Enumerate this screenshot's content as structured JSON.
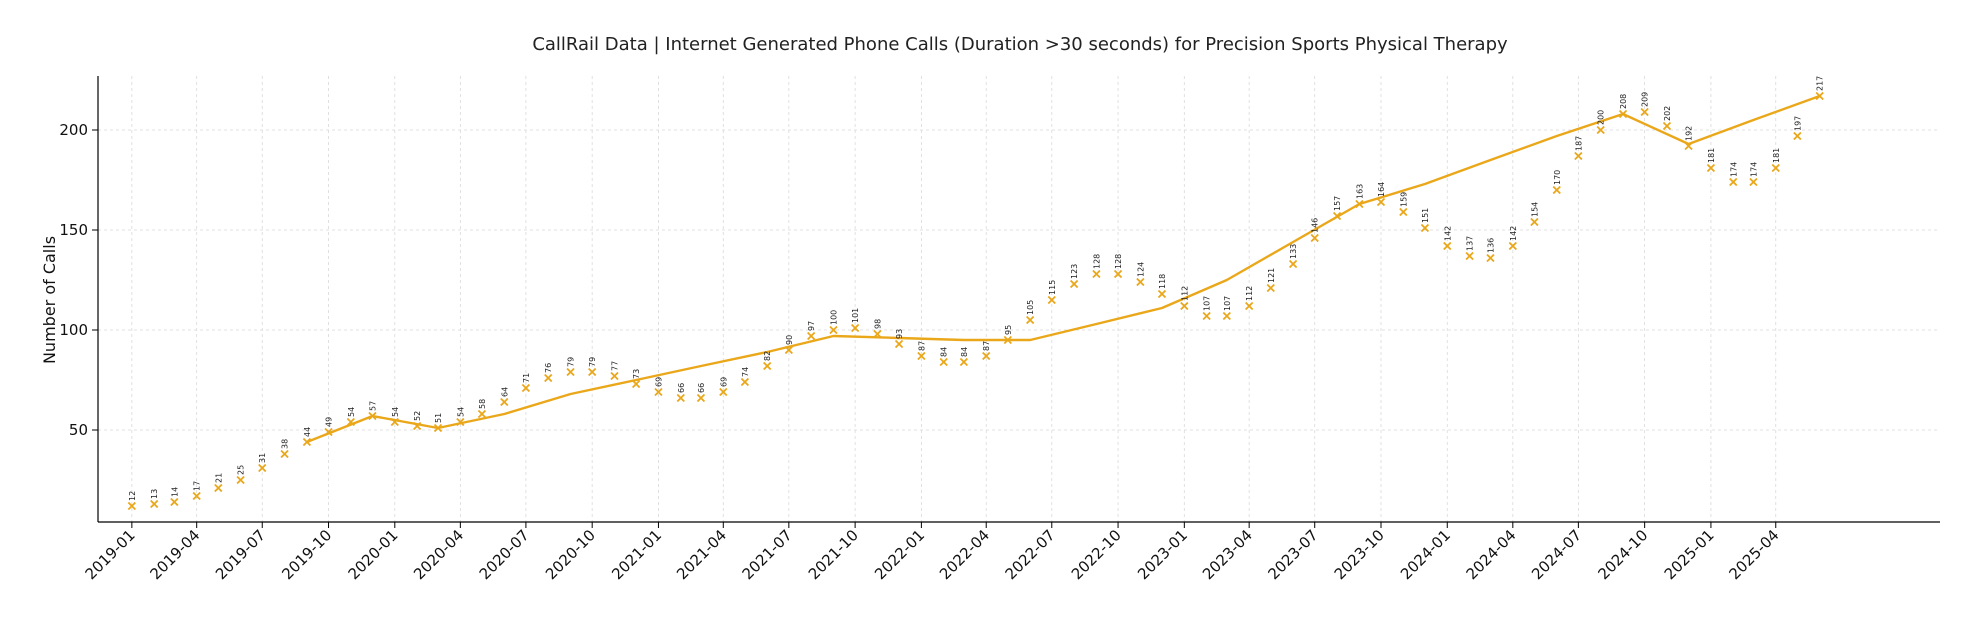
{
  "chart_data": {
    "type": "line",
    "title": "CallRail Data | Internet Generated Phone Calls (Duration >30 seconds) for Precision Sports Physical Therapy",
    "xlabel": "",
    "ylabel": "Number of Calls",
    "ylim": [
      4,
      227
    ],
    "yticks": [
      50,
      100,
      150,
      200
    ],
    "grid": true,
    "xlim": [
      "2018-11-15",
      "2025-11-15"
    ],
    "xticks": [
      "2019-01",
      "2019-04",
      "2019-07",
      "2019-10",
      "2020-01",
      "2020-04",
      "2020-07",
      "2020-10",
      "2021-01",
      "2021-04",
      "2021-07",
      "2021-10",
      "2022-01",
      "2022-04",
      "2022-07",
      "2022-10",
      "2023-01",
      "2023-04",
      "2023-07",
      "2023-10",
      "2024-01",
      "2024-04",
      "2024-07",
      "2024-10",
      "2025-01",
      "2025-04"
    ],
    "colors": {
      "series": "#eaa71a",
      "axis": "#000000",
      "grid": "#d9d9d9"
    },
    "series": [
      {
        "marker": "x",
        "x": [
          "2019-01",
          "2019-02",
          "2019-03",
          "2019-04",
          "2019-05",
          "2019-06",
          "2019-07",
          "2019-08",
          "2019-09",
          "2019-10",
          "2019-11",
          "2019-12",
          "2020-01",
          "2020-02",
          "2020-03",
          "2020-04",
          "2020-05",
          "2020-06",
          "2020-07",
          "2020-08",
          "2020-09",
          "2020-10",
          "2020-11",
          "2020-12",
          "2021-01",
          "2021-02",
          "2021-03",
          "2021-04",
          "2021-05",
          "2021-06",
          "2021-07",
          "2021-08",
          "2021-09",
          "2021-10",
          "2021-11",
          "2021-12",
          "2022-01",
          "2022-02",
          "2022-03",
          "2022-04",
          "2022-05",
          "2022-06",
          "2022-07",
          "2022-08",
          "2022-09",
          "2022-10",
          "2022-11",
          "2022-12",
          "2023-01",
          "2023-02",
          "2023-03",
          "2023-04",
          "2023-05",
          "2023-06",
          "2023-07",
          "2023-08",
          "2023-09",
          "2023-10",
          "2023-11",
          "2023-12",
          "2024-01",
          "2024-02",
          "2024-03",
          "2024-04",
          "2024-05",
          "2024-06",
          "2024-07",
          "2024-08",
          "2024-09",
          "2024-10",
          "2024-11",
          "2024-12",
          "2025-01",
          "2025-02",
          "2025-03",
          "2025-04",
          "2025-05",
          "2025-06"
        ],
        "values": [
          12,
          13,
          14,
          17,
          21,
          25,
          31,
          38,
          44,
          49,
          54,
          57,
          54,
          52,
          51,
          54,
          58,
          64,
          71,
          76,
          79,
          79,
          77,
          73,
          69,
          66,
          66,
          69,
          74,
          82,
          90,
          97,
          100,
          101,
          98,
          93,
          87,
          84,
          84,
          87,
          95,
          105,
          115,
          123,
          128,
          128,
          124,
          118,
          112,
          107,
          107,
          112,
          121,
          133,
          146,
          157,
          163,
          164,
          159,
          151,
          142,
          137,
          136,
          142,
          154,
          170,
          187,
          200,
          208,
          209,
          202,
          192,
          181,
          174,
          174,
          181,
          197,
          217
        ]
      },
      {
        "marker": "none",
        "x": [
          "2019-09",
          "2019-12",
          "2020-03",
          "2020-06",
          "2020-09",
          "2020-12",
          "2021-03",
          "2021-06",
          "2021-09",
          "2021-12",
          "2022-03",
          "2022-06",
          "2022-09",
          "2022-12",
          "2023-03",
          "2023-06",
          "2023-09",
          "2023-12",
          "2024-03",
          "2024-06",
          "2024-09",
          "2024-12",
          "2025-03",
          "2025-06"
        ],
        "values": [
          44,
          57,
          51,
          58,
          68,
          75,
          82,
          89,
          97,
          96,
          95,
          95,
          103,
          111,
          125,
          144,
          163,
          173,
          185,
          197,
          208,
          193,
          205,
          217
        ]
      }
    ]
  }
}
